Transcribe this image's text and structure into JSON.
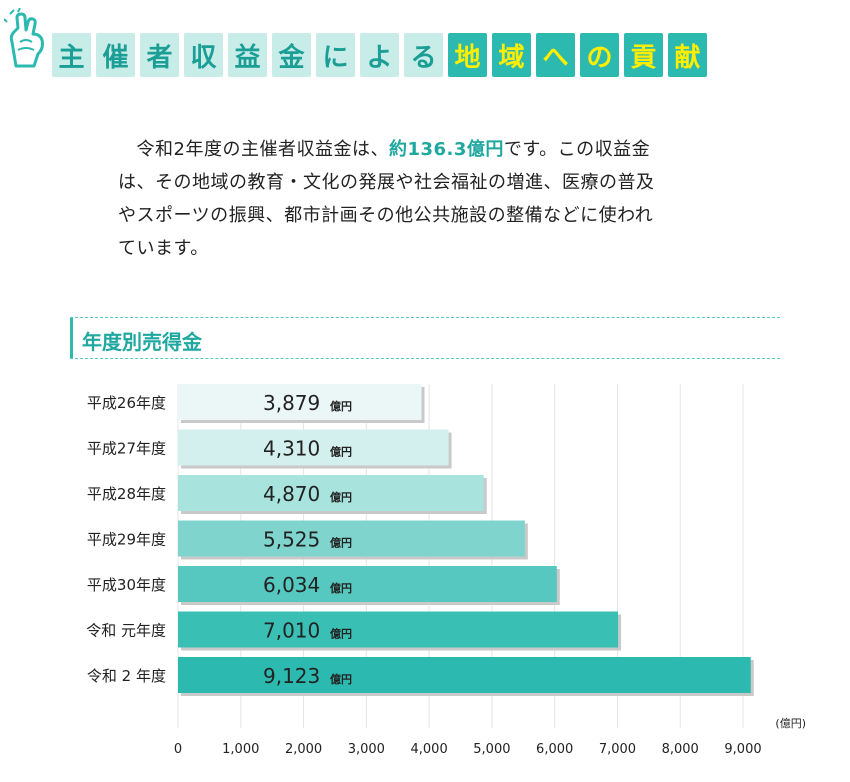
{
  "header": {
    "title_light": [
      "主",
      "催",
      "者",
      "収",
      "益",
      "金",
      "に",
      "よ",
      "る"
    ],
    "title_dark": [
      "地",
      "域",
      "へ",
      "の",
      "貢",
      "献"
    ]
  },
  "intro": {
    "text_before": "　令和2年度の主催者収益金は、",
    "emphasis": "約136.3億円",
    "text_after": "です。この収益金\nは、その地域の教育・文化の発展や社会福祉の増進、医療の普及\nやスポーツの振興、都市計画その他公共施設の整備などに使われ\nています。"
  },
  "section": {
    "title": "年度別売得金"
  },
  "colors": {
    "accent": "#2cbab0",
    "bars": [
      "#eaf7f6",
      "#d3f0ee",
      "#a9e3de",
      "#7fd5ce",
      "#56c8bf",
      "#3abfb5",
      "#2cbab0"
    ]
  },
  "chart_data": {
    "type": "bar",
    "orientation": "horizontal",
    "categories": [
      "平成26年度",
      "平成27年度",
      "平成28年度",
      "平成29年度",
      "平成30年度",
      "令和 元年度",
      "令和 2 年度"
    ],
    "values": [
      3879,
      4310,
      4870,
      5525,
      6034,
      7010,
      9123
    ],
    "value_labels": [
      "3,879",
      "4,310",
      "4,870",
      "5,525",
      "6,034",
      "7,010",
      "9,123"
    ],
    "value_unit": "億円",
    "unit_label": "(億円)",
    "xticks": [
      "0",
      "1,000",
      "2,000",
      "3,000",
      "4,000",
      "5,000",
      "6,000",
      "7,000",
      "8,000",
      "9,000"
    ],
    "xlim": [
      0,
      9000
    ],
    "grid": true
  }
}
